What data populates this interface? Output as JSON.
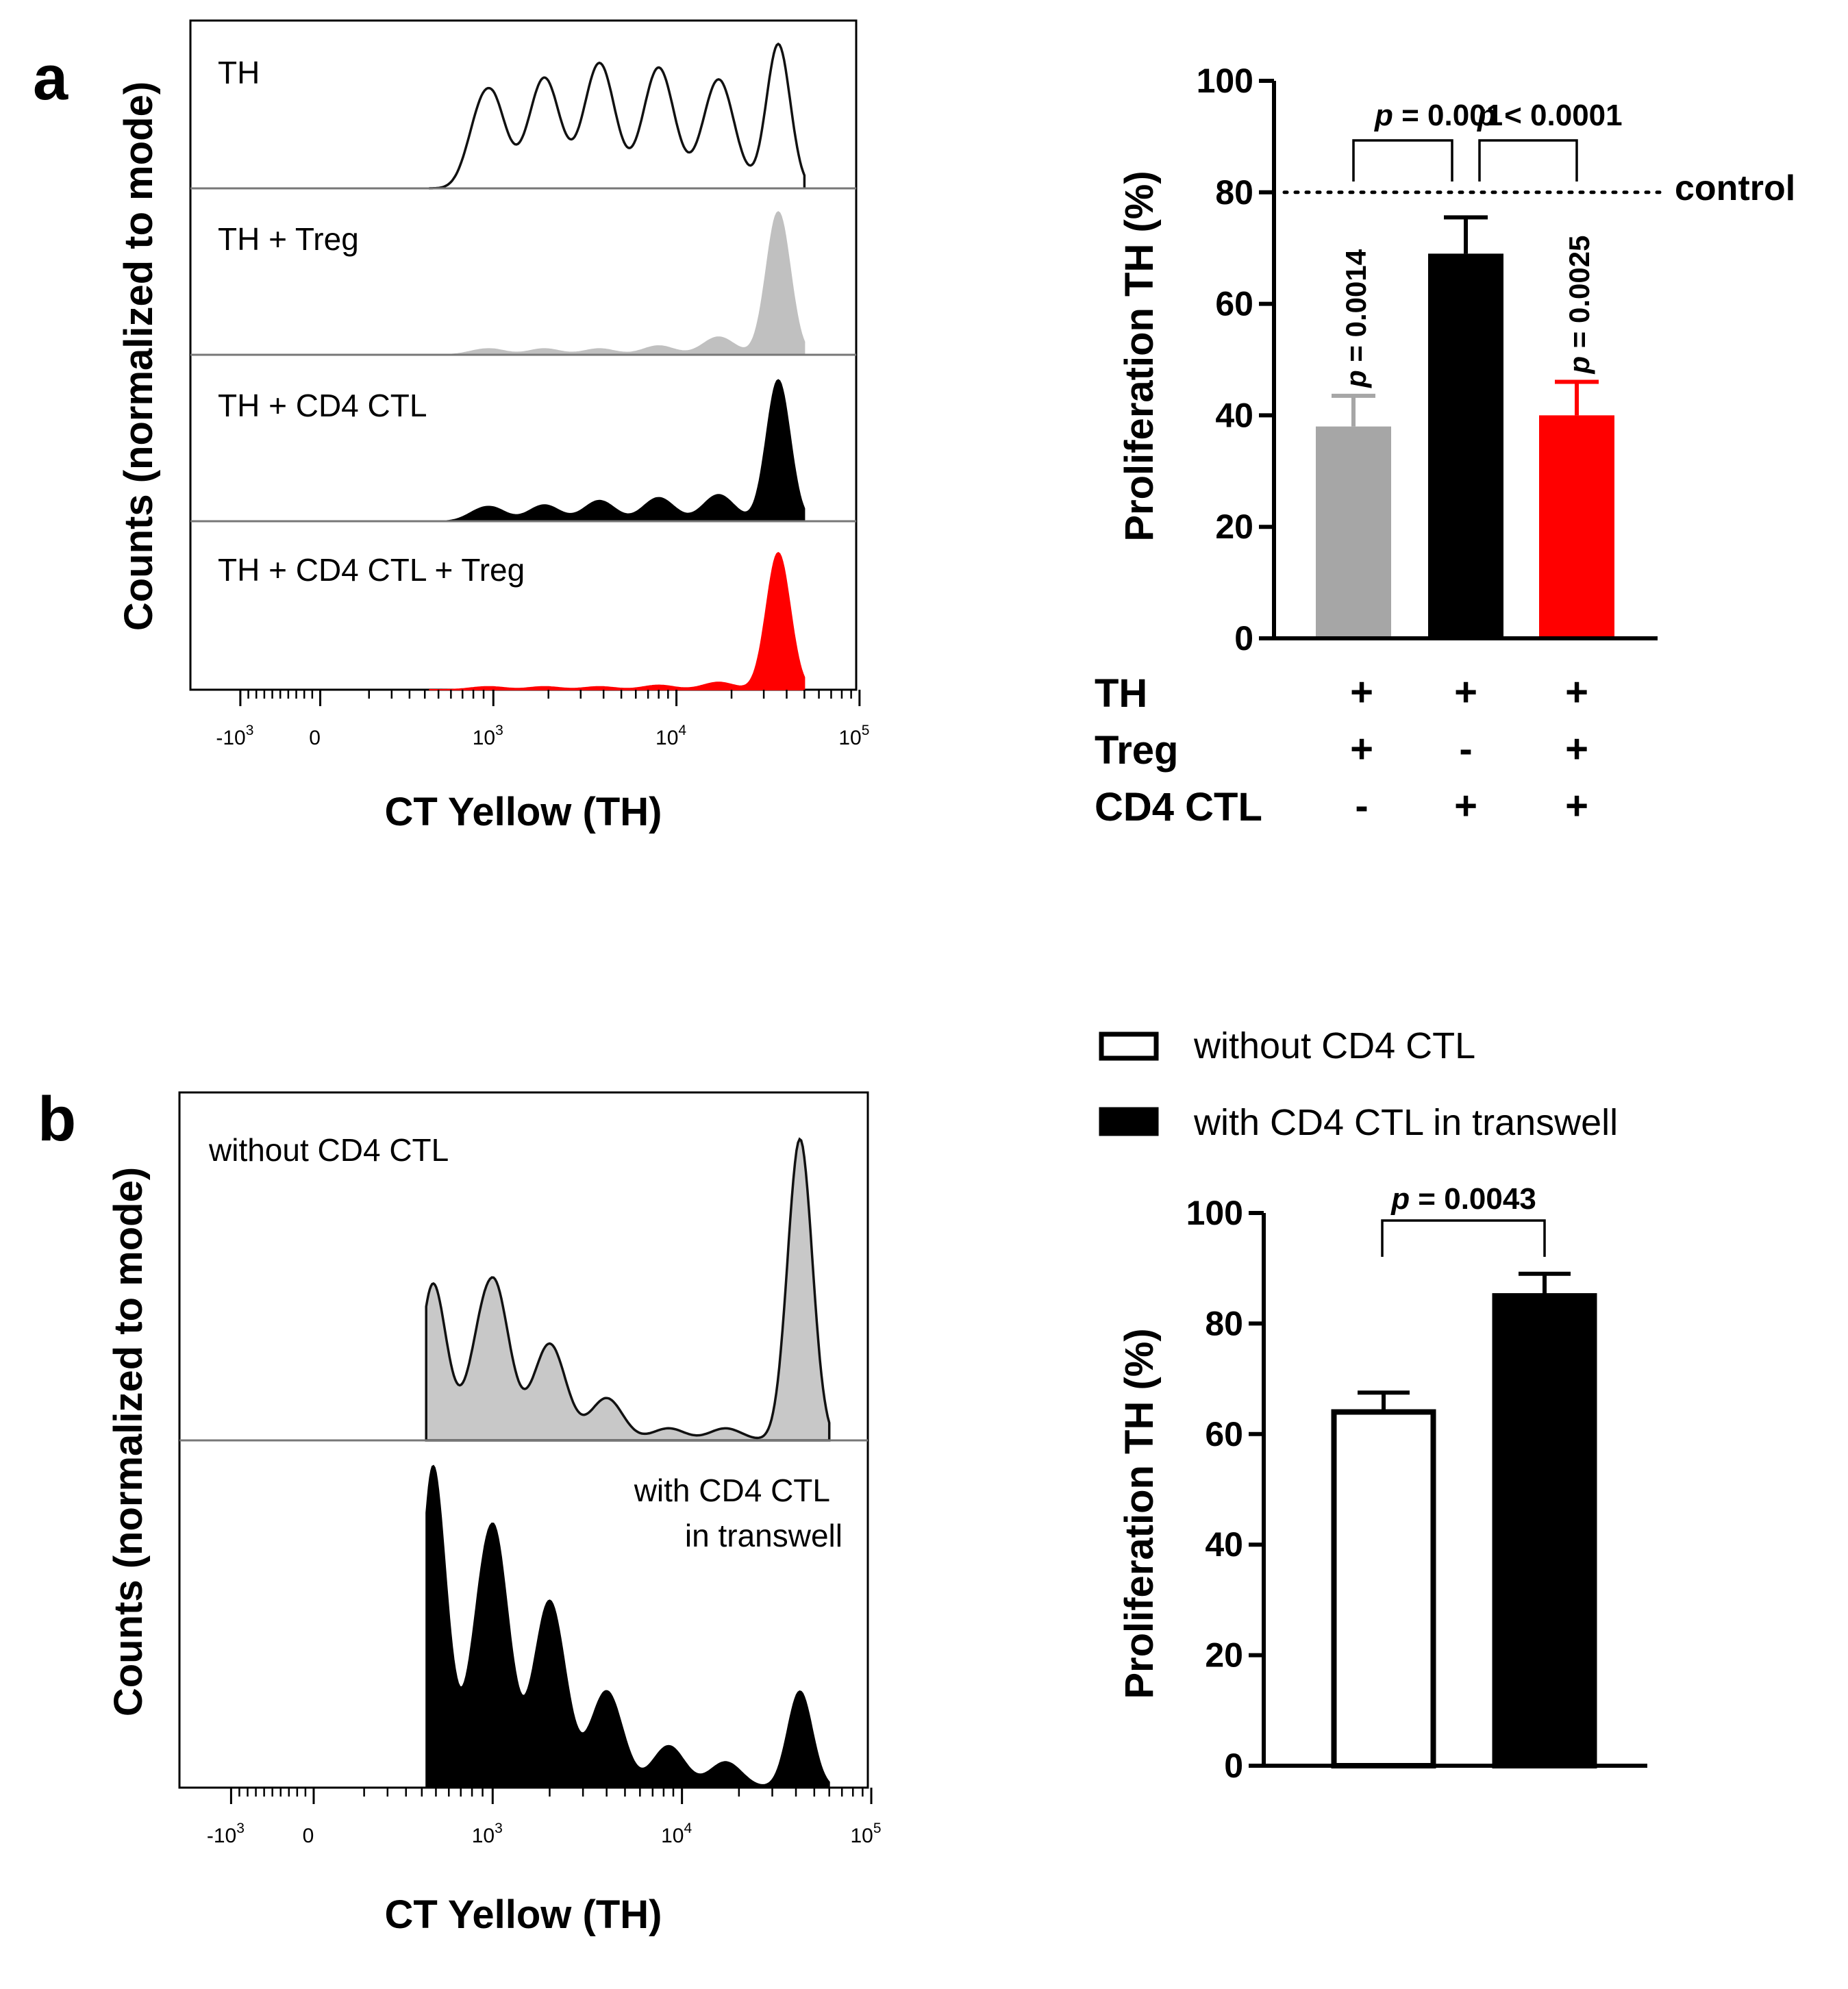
{
  "panels": {
    "a": {
      "letter": "a"
    },
    "b": {
      "letter": "b"
    }
  },
  "colors": {
    "gray": "#a6a6a6",
    "gray_light": "#c8c8c8",
    "black": "#000000",
    "red": "#ff0000"
  },
  "chart_data": [
    {
      "id": "a-histogram",
      "type": "histogram-overlay",
      "ylabel": "Counts (normalized to mode)",
      "xlabel": "CT Yellow (TH)",
      "x_scale": "biexponential",
      "tick_labels": [
        {
          "base": "-10",
          "exp": "3",
          "value": -1000
        },
        {
          "base": "0",
          "exp": "",
          "value": 0
        },
        {
          "base": "10",
          "exp": "3",
          "value": 1000
        },
        {
          "base": "10",
          "exp": "4",
          "value": 10000
        },
        {
          "base": "10",
          "exp": "5",
          "value": 100000
        }
      ],
      "tracks": [
        {
          "label": "TH",
          "color": "#000000",
          "style": "outline",
          "peak_x": [
            950,
            1900,
            3800,
            8000,
            17000,
            36000
          ],
          "peak_h": [
            0.68,
            0.75,
            0.85,
            0.82,
            0.74,
            0.98
          ]
        },
        {
          "label": "TH + Treg",
          "color": "#c0c0c0",
          "style": "filled",
          "peak_x": [
            950,
            1900,
            3800,
            8000,
            17000,
            36000
          ],
          "peak_h": [
            0.04,
            0.04,
            0.04,
            0.06,
            0.12,
            0.97
          ]
        },
        {
          "label": "TH + CD4 CTL",
          "color": "#000000",
          "style": "filled",
          "peak_x": [
            950,
            1900,
            3800,
            8000,
            17000,
            36000
          ],
          "peak_h": [
            0.1,
            0.11,
            0.14,
            0.16,
            0.18,
            0.96
          ]
        },
        {
          "label": "TH + CD4 CTL + Treg",
          "color": "#ff0000",
          "style": "filled",
          "peak_x": [
            950,
            1900,
            3800,
            8000,
            17000,
            36000
          ],
          "peak_h": [
            0.02,
            0.02,
            0.02,
            0.03,
            0.05,
            0.93
          ]
        }
      ]
    },
    {
      "id": "a-bars",
      "type": "bar",
      "ylabel": "Proliferation TH (%)",
      "ylim": [
        0,
        100
      ],
      "yticks": [
        "0",
        "20",
        "40",
        "60",
        "80",
        "100"
      ],
      "control_value": 80,
      "control_label": "control",
      "bars": [
        {
          "value": 38,
          "error": 5.5,
          "color": "#a6a6a6",
          "vp_p": "p",
          "vp_text": " = 0.0014"
        },
        {
          "value": 69,
          "error": 6.5,
          "color": "#000000",
          "vp_p": "",
          "vp_text": ""
        },
        {
          "value": 40,
          "error": 6,
          "color": "#ff0000",
          "vp_p": "p",
          "vp_text": " = 0.0025"
        }
      ],
      "comparisons": [
        {
          "p": "p",
          "text": " = 0.001",
          "from": 0,
          "to": 1
        },
        {
          "p": "p",
          "text": " < 0.0001",
          "from": 1,
          "to": 2
        }
      ],
      "conditions": [
        {
          "label": "TH",
          "values": [
            "+",
            "+",
            "+"
          ]
        },
        {
          "label": "Treg",
          "values": [
            "+",
            "-",
            "+"
          ]
        },
        {
          "label": "CD4 CTL",
          "values": [
            "-",
            "+",
            "+"
          ]
        }
      ]
    },
    {
      "id": "b-histogram",
      "type": "histogram-overlay",
      "ylabel": "Counts (normalized to mode)",
      "xlabel": "CT Yellow (TH)",
      "x_scale": "biexponential",
      "tick_labels": [
        {
          "base": "-10",
          "exp": "3",
          "value": -1000
        },
        {
          "base": "0",
          "exp": "",
          "value": 0
        },
        {
          "base": "10",
          "exp": "3",
          "value": 1000
        },
        {
          "base": "10",
          "exp": "4",
          "value": 10000
        },
        {
          "base": "10",
          "exp": "5",
          "value": 100000
        }
      ],
      "tracks": [
        {
          "label_lines": [
            "without CD4 CTL"
          ],
          "color": "#c8c8c8",
          "style": "filled-outline",
          "align": "left",
          "peak_x": [
            480,
            1000,
            2000,
            4000,
            8500,
            17000,
            42000
          ],
          "peak_h": [
            0.52,
            0.54,
            0.32,
            0.14,
            0.04,
            0.04,
            1.0
          ]
        },
        {
          "label_lines": [
            "with CD4 CTL",
            "in transwell"
          ],
          "color": "#000000",
          "style": "filled",
          "align": "right",
          "peak_x": [
            480,
            1000,
            2000,
            4000,
            8500,
            17000,
            42000
          ],
          "peak_h": [
            1.0,
            0.82,
            0.58,
            0.3,
            0.13,
            0.08,
            0.3
          ]
        }
      ]
    },
    {
      "id": "b-bars",
      "type": "bar",
      "ylabel": "Proliferation TH (%)",
      "ylim": [
        0,
        100
      ],
      "yticks": [
        "0",
        "20",
        "40",
        "60",
        "80",
        "100"
      ],
      "bars": [
        {
          "value": 64,
          "error": 3.5,
          "fill": "#ffffff",
          "stroke": "#000000"
        },
        {
          "value": 85,
          "error": 4,
          "fill": "#000000",
          "stroke": "#000000"
        }
      ],
      "comparisons": [
        {
          "p": "p",
          "text": " = 0.0043",
          "from": 0,
          "to": 1
        }
      ],
      "legend": [
        {
          "label": "without CD4 CTL",
          "fill": "#ffffff"
        },
        {
          "label": "with CD4 CTL in transwell",
          "fill": "#000000"
        }
      ]
    }
  ]
}
